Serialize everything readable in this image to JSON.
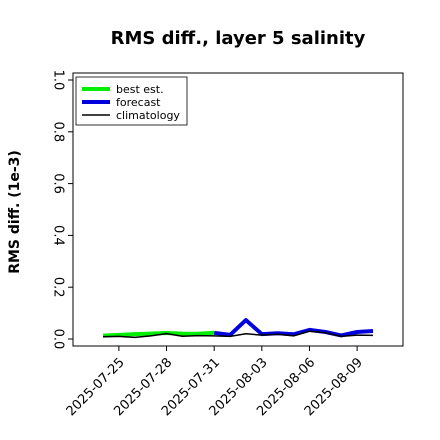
{
  "chart_data": {
    "type": "line",
    "title": "RMS diff., layer 5 salinity",
    "xlabel": "",
    "ylabel": "RMS diff. (1e-3)",
    "ylim": [
      0.0,
      1.0
    ],
    "yticks": [
      "0.0",
      "0.2",
      "0.4",
      "0.6",
      "0.8",
      "1.0"
    ],
    "x_start": "2025-07-24",
    "x_end": "2025-08-10",
    "xticks": [
      {
        "date": "2025-07-25",
        "label": "2025-07-25",
        "color": "#000000"
      },
      {
        "date": "2025-07-28",
        "label": "2025-07-28",
        "color": "#000000"
      },
      {
        "date": "2025-07-31",
        "label": "2025-07-31",
        "color": "#008000"
      },
      {
        "date": "2025-08-03",
        "label": "2025-08-03",
        "color": "#000000"
      },
      {
        "date": "2025-08-06",
        "label": "2025-08-06",
        "color": "#000000"
      },
      {
        "date": "2025-08-09",
        "label": "2025-08-09",
        "color": "#000000"
      }
    ],
    "legend_position": "top-left",
    "grid": false,
    "series": [
      {
        "name": "best est.",
        "color": "#00ee00",
        "x": [
          "2025-07-24",
          "2025-07-25",
          "2025-07-26",
          "2025-07-27",
          "2025-07-28",
          "2025-07-29",
          "2025-07-30",
          "2025-07-31"
        ],
        "y": [
          0.013,
          0.016,
          0.019,
          0.021,
          0.023,
          0.021,
          0.02,
          0.024
        ]
      },
      {
        "name": "forecast",
        "color": "#0000dd",
        "x": [
          "2025-07-31",
          "2025-08-01",
          "2025-08-02",
          "2025-08-03",
          "2025-08-04",
          "2025-08-05",
          "2025-08-06",
          "2025-08-07",
          "2025-08-08",
          "2025-08-09",
          "2025-08-10"
        ],
        "y": [
          0.024,
          0.016,
          0.073,
          0.019,
          0.022,
          0.018,
          0.035,
          0.027,
          0.014,
          0.027,
          0.031
        ]
      },
      {
        "name": "climatology",
        "color": "#000000",
        "x": [
          "2025-07-24",
          "2025-07-25",
          "2025-07-26",
          "2025-07-27",
          "2025-07-28",
          "2025-07-29",
          "2025-07-30",
          "2025-07-31",
          "2025-08-01",
          "2025-08-02",
          "2025-08-03",
          "2025-08-04",
          "2025-08-05",
          "2025-08-06",
          "2025-08-07",
          "2025-08-08",
          "2025-08-09",
          "2025-08-10"
        ],
        "y": [
          0.009,
          0.01,
          0.006,
          0.012,
          0.021,
          0.011,
          0.013,
          0.012,
          0.01,
          0.02,
          0.015,
          0.018,
          0.012,
          0.03,
          0.024,
          0.01,
          0.015,
          0.014
        ]
      }
    ]
  }
}
